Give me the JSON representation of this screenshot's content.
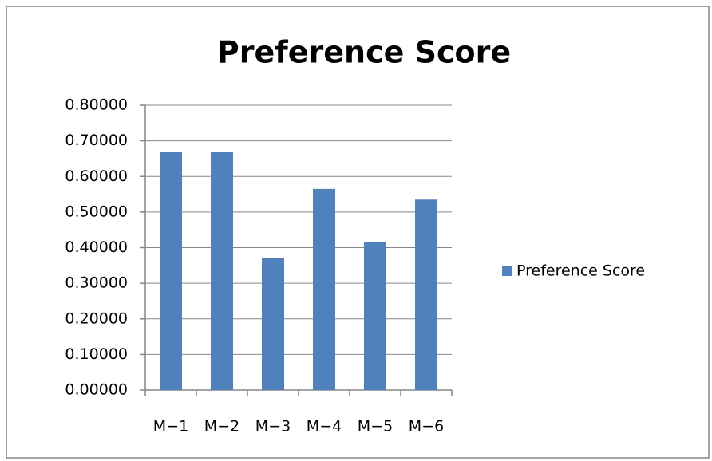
{
  "chart_data": {
    "type": "bar",
    "title": "Preference Score",
    "categories": [
      "M−1",
      "M−2",
      "M−3",
      "M−4",
      "M−5",
      "M−6"
    ],
    "series": [
      {
        "name": "Preference Score",
        "color": "#4f81bd",
        "values": [
          0.67,
          0.67,
          0.37,
          0.565,
          0.415,
          0.535
        ]
      }
    ],
    "ylim": [
      0,
      0.8
    ],
    "yticks": [
      {
        "value": 0,
        "label": "0.00000"
      },
      {
        "value": 0.1,
        "label": "0.10000"
      },
      {
        "value": 0.2,
        "label": "0.20000"
      },
      {
        "value": 0.3,
        "label": "0.30000"
      },
      {
        "value": 0.4,
        "label": "0.40000"
      },
      {
        "value": 0.5,
        "label": "0.50000"
      },
      {
        "value": 0.6,
        "label": "0.60000"
      },
      {
        "value": 0.7,
        "label": "0.70000"
      },
      {
        "value": 0.8,
        "label": "0.80000"
      }
    ],
    "grid": true,
    "legend": "right"
  }
}
